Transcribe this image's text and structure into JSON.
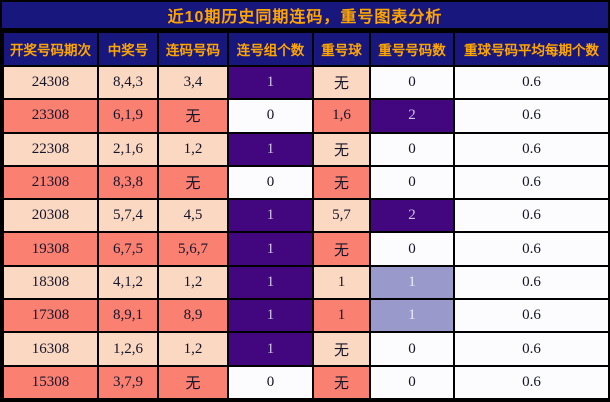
{
  "title": "近10期历史同期连码，重号图表分析",
  "chart_data": {
    "type": "table",
    "title": "近10期历史同期连码，重号图表分析",
    "columns": [
      "开奖号码期次",
      "中奖号",
      "连码号码",
      "连号组个数",
      "重号球",
      "重号号码数",
      "重球号码平均每期个数"
    ],
    "rows": [
      [
        "24308",
        "8,4,3",
        "3,4",
        "1",
        "无",
        "0",
        "0.6"
      ],
      [
        "23308",
        "6,1,9",
        "无",
        "0",
        "1,6",
        "2",
        "0.6"
      ],
      [
        "22308",
        "2,1,6",
        "1,2",
        "1",
        "无",
        "0",
        "0.6"
      ],
      [
        "21308",
        "8,3,8",
        "无",
        "0",
        "无",
        "0",
        "0.6"
      ],
      [
        "20308",
        "5,7,4",
        "4,5",
        "1",
        "5,7",
        "2",
        "0.6"
      ],
      [
        "19308",
        "6,7,5",
        "5,6,7",
        "1",
        "无",
        "0",
        "0.6"
      ],
      [
        "18308",
        "4,1,2",
        "1,2",
        "1",
        "1",
        "1",
        "0.6"
      ],
      [
        "17308",
        "8,9,1",
        "8,9",
        "1",
        "1",
        "1",
        "0.6"
      ],
      [
        "16308",
        "1,2,6",
        "1,2",
        "1",
        "无",
        "0",
        "0.6"
      ],
      [
        "15308",
        "3,7,9",
        "无",
        "0",
        "无",
        "0",
        "0.6"
      ]
    ],
    "layout": {
      "legend": "none",
      "grid": "on",
      "row_striping": "alternating",
      "highlight_rules": {
        "连号组个数": "value > 0 rendered on deep purple",
        "重号号码数": "value 2 on deep purple, value 1 on lavender, 0 on white",
        "重球号码平均每期个数": "always on white"
      }
    }
  },
  "colors": {
    "title_bg": "#17177e",
    "title_text": "#ffa500",
    "header_bg": "#17177e",
    "header_text": "#ffa500",
    "row_stripe_light": "#fbd8c2",
    "row_stripe_dark": "#fa8072",
    "highlight_purple": "#42067e",
    "highlight_purple_text": "#cdc7dd",
    "highlight_lavender": "#9a99cc",
    "highlight_lavender_text": "#edeef7",
    "neutral_cell": "#fcfcfe",
    "data_text": "#14142a",
    "border": "#000000"
  }
}
